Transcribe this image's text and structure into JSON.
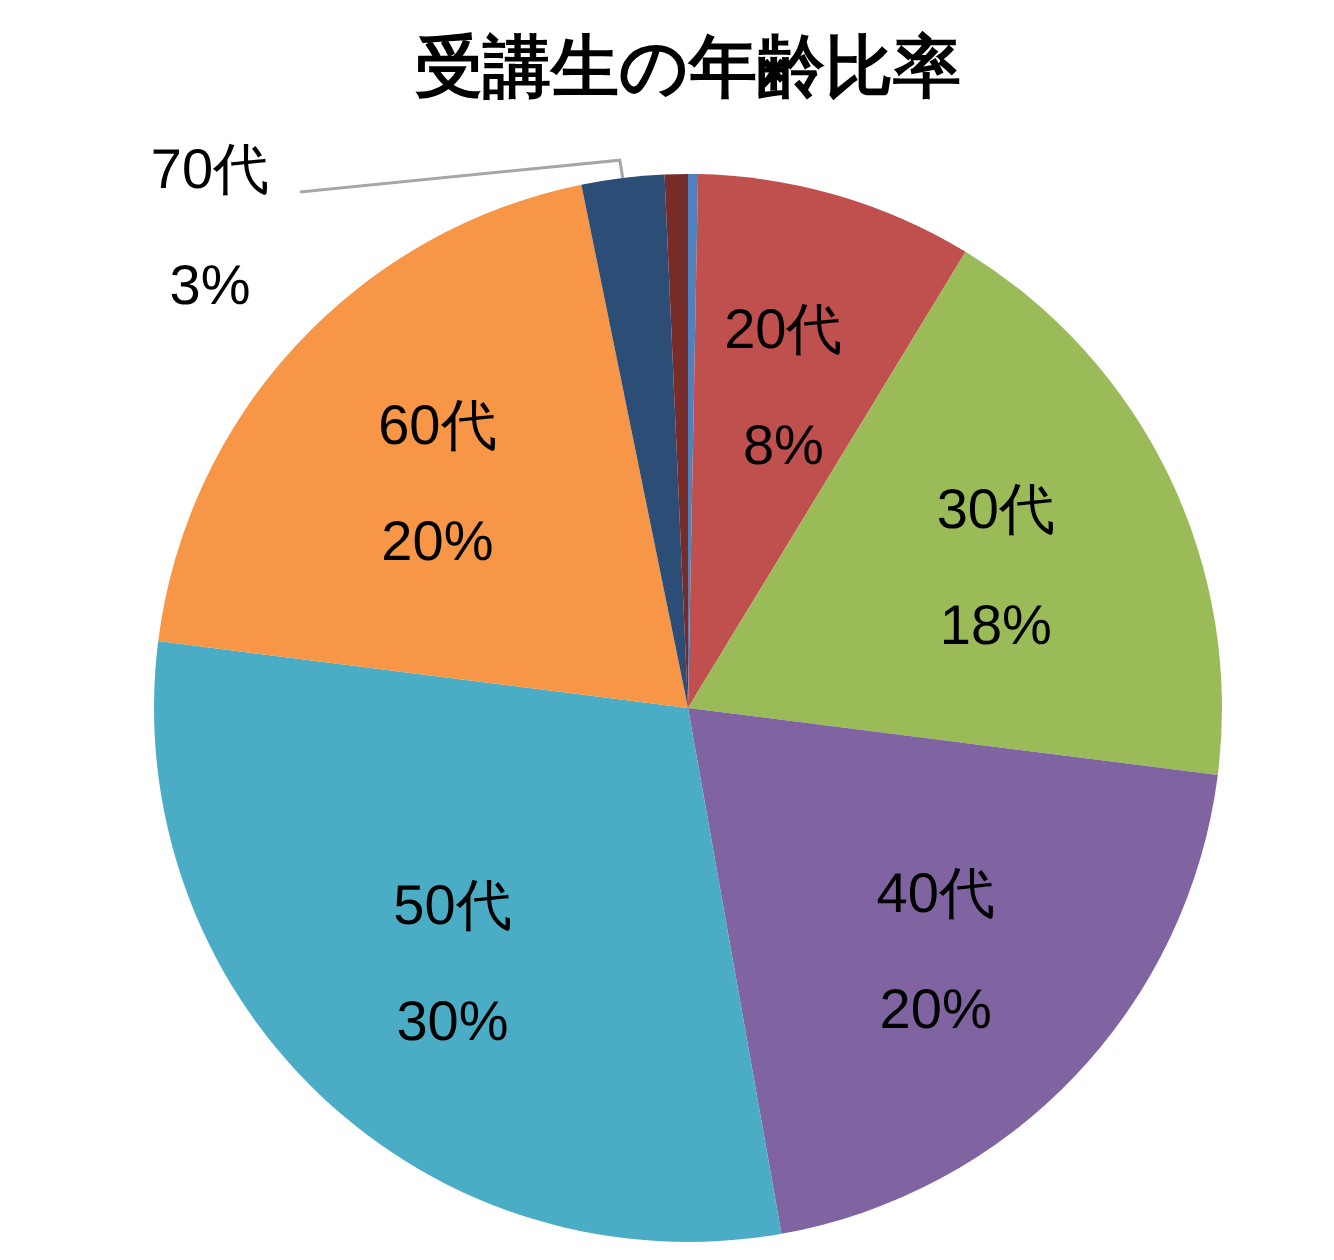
{
  "chart_data": {
    "type": "pie",
    "title": "受講生の年齢比率",
    "categories": [
      null,
      "20代",
      "30代",
      "40代",
      "50代",
      "60代",
      "70代",
      null
    ],
    "values": [
      0.3,
      8.4,
      18.3,
      20.2,
      29.8,
      19.8,
      2.5,
      0.7
    ],
    "value_labels": [
      null,
      "8%",
      "18%",
      "20%",
      "30%",
      "20%",
      "3%",
      null
    ],
    "colors": [
      "#4f81bd",
      "#c0504d",
      "#9bbb59",
      "#8064a2",
      "#4bacc6",
      "#f79646",
      "#2c4d75",
      "#772c2a"
    ]
  }
}
